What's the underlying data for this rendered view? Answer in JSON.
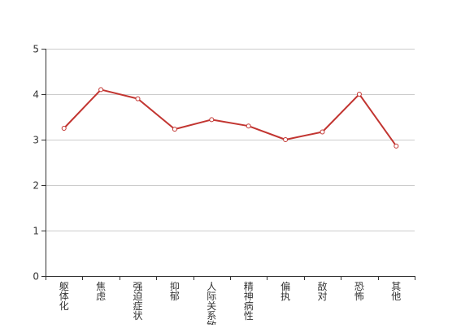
{
  "chart_data": {
    "type": "line",
    "title": "",
    "xlabel": "",
    "ylabel": "",
    "categories": [
      "躯体化",
      "焦虑",
      "强迫症状",
      "抑郁",
      "人际关系敏感",
      "精神病性",
      "偏执",
      "敌对",
      "恐怖",
      "其他"
    ],
    "series": [
      {
        "name": "",
        "values": [
          3.25,
          4.1,
          3.9,
          3.23,
          3.44,
          3.3,
          3.0,
          3.17,
          4.0,
          2.86
        ]
      }
    ],
    "ylim": [
      0,
      5
    ],
    "yticks": [
      "0",
      "1",
      "2",
      "3",
      "4",
      "5"
    ],
    "grid": true,
    "line_color": "#c23531",
    "grid_color": "#cccccc",
    "axis_color": "#333333"
  }
}
